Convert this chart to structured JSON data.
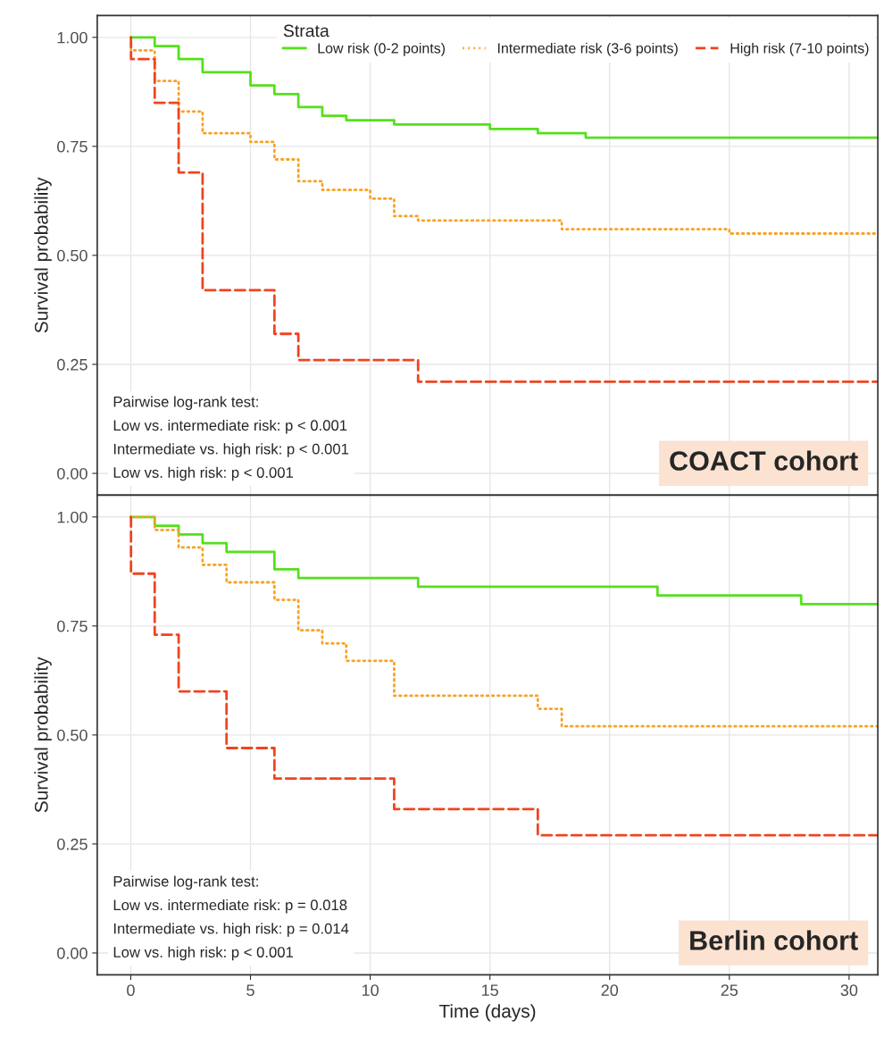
{
  "chart_data": [
    {
      "type": "step",
      "ylabel": "Survival probability",
      "legend_title": "Strata",
      "legend": "top right",
      "tick_labels": "y",
      "grid": true,
      "xlim": [
        -1.4,
        31.2
      ],
      "xticks": [
        0,
        5,
        10,
        15,
        20,
        25,
        30
      ],
      "ylim": [
        -0.05,
        1.05
      ],
      "yticks": [
        {
          "value": 0,
          "label": "0.00"
        },
        {
          "value": 0.25,
          "label": "0.25"
        },
        {
          "value": 0.5,
          "label": "0.50"
        },
        {
          "value": 0.75,
          "label": "0.75"
        },
        {
          "value": 1,
          "label": "1.00"
        }
      ],
      "series": [
        {
          "name": "Low risk (0-2 points)",
          "color": "#55e01c",
          "line_style": "solid",
          "x": [
            0,
            1,
            2,
            3,
            5,
            6,
            7,
            8,
            9,
            11,
            12,
            15,
            17,
            19,
            29,
            31.2
          ],
          "values": [
            1.0,
            0.98,
            0.95,
            0.92,
            0.89,
            0.87,
            0.84,
            0.82,
            0.81,
            0.8,
            0.8,
            0.79,
            0.78,
            0.77,
            0.77,
            0.77
          ]
        },
        {
          "name": "Intermediate risk (3-6 points)",
          "color": "#f7a226",
          "line_style": "dotted",
          "x": [
            0,
            0.01,
            1,
            2,
            3,
            5,
            6,
            7,
            8,
            10,
            11,
            12,
            14,
            18,
            25,
            31.2
          ],
          "values": [
            1.0,
            0.97,
            0.9,
            0.83,
            0.78,
            0.76,
            0.72,
            0.67,
            0.65,
            0.63,
            0.59,
            0.58,
            0.58,
            0.56,
            0.55,
            0.55
          ]
        },
        {
          "name": "High risk (7-10 points)",
          "color": "#f0441f",
          "line_style": "dashed",
          "x": [
            0,
            0.01,
            1,
            2,
            3,
            6,
            7,
            12,
            31.2
          ],
          "values": [
            1.0,
            0.95,
            0.85,
            0.69,
            0.42,
            0.32,
            0.26,
            0.21,
            0.21
          ]
        }
      ],
      "annotations": [
        "Pairwise log-rank test:\nLow vs. intermediate risk: p < 0.001\nIntermediate vs. high risk: p < 0.001\nLow vs. high risk: p < 0.001",
        "COACT cohort"
      ]
    },
    {
      "type": "step",
      "xlabel": "Time (days)",
      "ylabel": "Survival probability",
      "grid": true,
      "xlim": [
        -1.4,
        31.2
      ],
      "xticks": [
        0,
        5,
        10,
        15,
        20,
        25,
        30
      ],
      "ylim": [
        -0.05,
        1.05
      ],
      "yticks": [
        {
          "value": 0,
          "label": "0.00"
        },
        {
          "value": 0.25,
          "label": "0.25"
        },
        {
          "value": 0.5,
          "label": "0.50"
        },
        {
          "value": 0.75,
          "label": "0.75"
        },
        {
          "value": 1,
          "label": "1.00"
        }
      ],
      "series": [
        {
          "color": "#55e01c",
          "line_style": "solid",
          "x": [
            0,
            1,
            2,
            3,
            4,
            6,
            7,
            12,
            22,
            28,
            31.2
          ],
          "values": [
            1.0,
            0.98,
            0.96,
            0.94,
            0.92,
            0.88,
            0.86,
            0.84,
            0.82,
            0.8,
            0.8
          ]
        },
        {
          "color": "#f7a226",
          "line_style": "dotted",
          "x": [
            0,
            1,
            2,
            3,
            4,
            6,
            7,
            8,
            9,
            11,
            17,
            18,
            31.2
          ],
          "values": [
            1.0,
            0.97,
            0.93,
            0.89,
            0.85,
            0.81,
            0.74,
            0.71,
            0.67,
            0.59,
            0.56,
            0.52,
            0.52
          ]
        },
        {
          "color": "#f0441f",
          "line_style": "dashed",
          "x": [
            0,
            0.01,
            1,
            2,
            4,
            6,
            11,
            17,
            31.2
          ],
          "values": [
            1.0,
            0.87,
            0.73,
            0.6,
            0.47,
            0.4,
            0.33,
            0.27,
            0.27
          ]
        }
      ],
      "annotations": [
        "Pairwise log-rank test:\nLow vs. intermediate risk: p = 0.018\nIntermediate vs. high risk: p = 0.014\nLow vs. high risk: p < 0.001",
        "Berlin cohort"
      ]
    }
  ]
}
